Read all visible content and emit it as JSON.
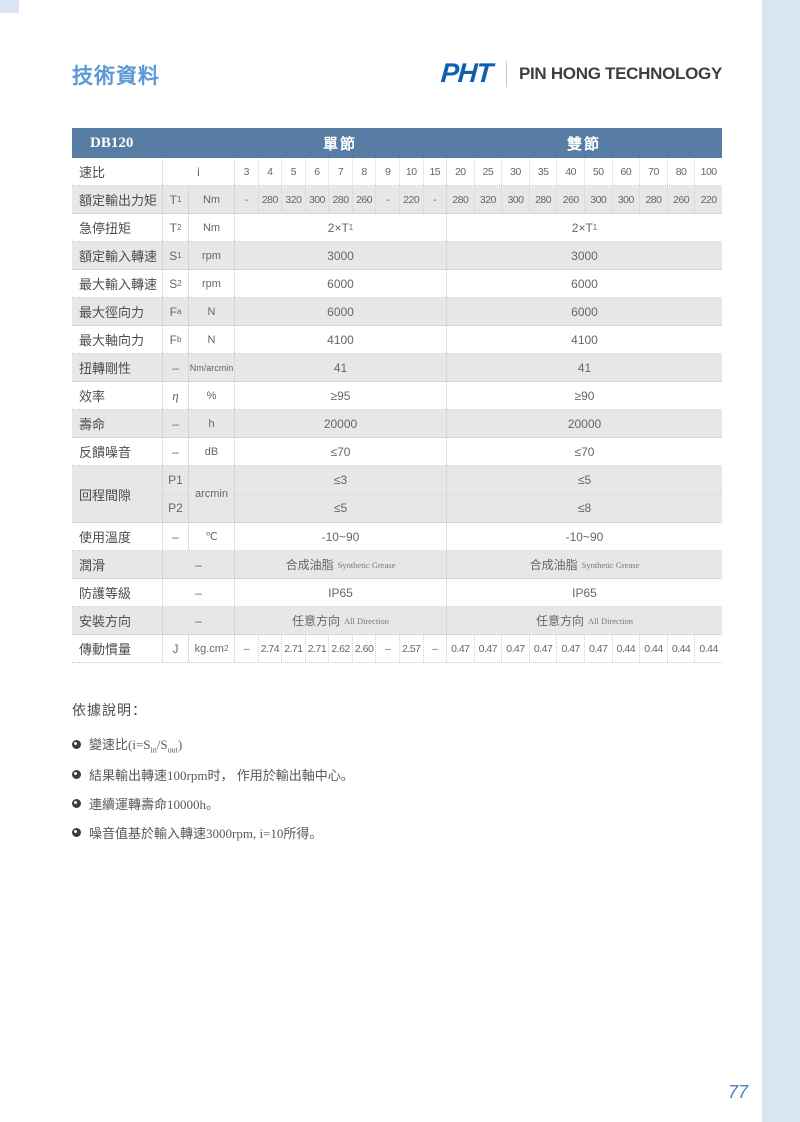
{
  "page": {
    "title": "技術資料",
    "page_number": "77",
    "logo": {
      "abbr": "PHT",
      "name": "PIN HONG TECHNOLOGY"
    }
  },
  "table": {
    "model": "DB120",
    "sections": {
      "single": "單節",
      "double": "雙節"
    },
    "ratio": {
      "label": "速比",
      "sym": "i",
      "single": [
        "3",
        "4",
        "5",
        "6",
        "7",
        "8",
        "9",
        "10",
        "15"
      ],
      "double": [
        "20",
        "25",
        "30",
        "35",
        "40",
        "50",
        "60",
        "70",
        "80",
        "100"
      ]
    },
    "torque": {
      "label": "額定輸出力矩",
      "sym": "T",
      "sub": "1",
      "unit": "Nm",
      "single": [
        "-",
        "280",
        "320",
        "300",
        "280",
        "260",
        "-",
        "220",
        "-"
      ],
      "double": [
        "280",
        "320",
        "300",
        "280",
        "260",
        "300",
        "300",
        "280",
        "260",
        "220"
      ]
    },
    "estop": {
      "label": "急停扭矩",
      "sym": "T",
      "sub": "2",
      "unit": "Nm",
      "value_pre": "2×T",
      "value_sub": "1"
    },
    "rated_speed": {
      "label": "額定輸入轉速",
      "sym": "S",
      "sub": "1",
      "unit": "rpm",
      "single": "3000",
      "double": "3000"
    },
    "max_speed": {
      "label": "最大輸入轉速",
      "sym": "S",
      "sub": "2",
      "unit": "rpm",
      "single": "6000",
      "double": "6000"
    },
    "radial": {
      "label": "最大徑向力",
      "sym": "F",
      "sub": "a",
      "unit": "N",
      "single": "6000",
      "double": "6000"
    },
    "axial": {
      "label": "最大軸向力",
      "sym": "F",
      "sub": "b",
      "unit": "N",
      "single": "4100",
      "double": "4100"
    },
    "stiffness": {
      "label": "扭轉剛性",
      "sym": "–",
      "unit": "Nm/arcmin",
      "single": "41",
      "double": "41"
    },
    "efficiency": {
      "label": "效率",
      "sym": "η",
      "unit": "%",
      "single": "≥95",
      "double": "≥90"
    },
    "life": {
      "label": "壽命",
      "sym": "–",
      "unit": "h",
      "single": "20000",
      "double": "20000"
    },
    "noise": {
      "label": "反饋噪音",
      "sym": "–",
      "unit": "dB",
      "single": "≤70",
      "double": "≤70"
    },
    "backlash": {
      "label": "回程間隙",
      "unit": "arcmin",
      "p1": {
        "sym": "P1",
        "single": "≤3",
        "double": "≤5"
      },
      "p2": {
        "sym": "P2",
        "single": "≤5",
        "double": "≤8"
      }
    },
    "temp": {
      "label": "使用溫度",
      "sym": "–",
      "unit": "℃",
      "single": "-10~90",
      "double": "-10~90"
    },
    "lube": {
      "label": "潤滑",
      "dash": "–",
      "cjk": "合成油脂",
      "en": "Synthetic Grease"
    },
    "ip": {
      "label": "防護等級",
      "dash": "–",
      "single": "IP65",
      "double": "IP65"
    },
    "mount": {
      "label": "安裝方向",
      "dash": "–",
      "cjk": "任意方向",
      "en": "All Direction"
    },
    "inertia": {
      "label": "傳動慣量",
      "sym": "J",
      "unit": "kg.cm",
      "unit_sup": "2",
      "single": [
        "–",
        "2.74",
        "2.71",
        "2.71",
        "2.62",
        "2.60",
        "–",
        "2.57",
        "–"
      ],
      "double": [
        "0.47",
        "0.47",
        "0.47",
        "0.47",
        "0.47",
        "0.47",
        "0.44",
        "0.44",
        "0.44",
        "0.44"
      ]
    }
  },
  "notes": {
    "title": "依據說明：",
    "item1": {
      "pre": "變速比(i=S",
      "sub1": "in",
      "mid": "/S",
      "sub2": "out",
      "post": ")"
    },
    "item2": "結果輸出轉速100rpm时， 作用於輸出軸中心。",
    "item3": "連續運轉壽命10000h。",
    "item4": "噪音值基於輸入轉速3000rpm, i=10所得。"
  }
}
